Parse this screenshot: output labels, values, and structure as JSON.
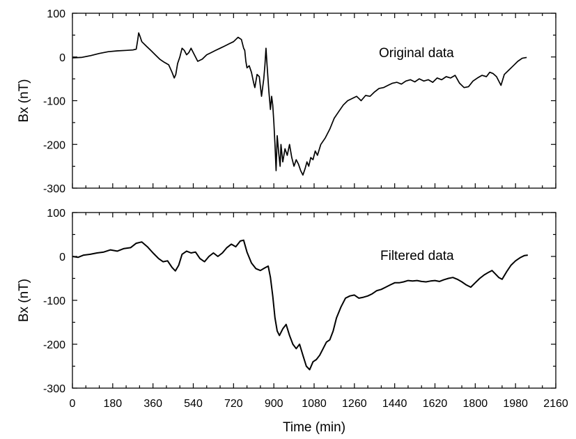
{
  "figure": {
    "xlabel": "Time (min)",
    "line_color": "#000000"
  },
  "chart_data": [
    {
      "type": "line",
      "title": "",
      "ylabel": "Bx (nT)",
      "annotation": "Original data",
      "xlim": [
        0,
        2160
      ],
      "ylim": [
        -300,
        100
      ],
      "x_ticks": [
        0,
        180,
        360,
        540,
        720,
        900,
        1080,
        1260,
        1440,
        1620,
        1800,
        1980,
        2160
      ],
      "y_ticks": [
        100,
        0,
        -100,
        -200,
        -300
      ],
      "grid": false,
      "series": [
        {
          "x": [
            0,
            40,
            80,
            120,
            160,
            200,
            240,
            270,
            285,
            292,
            296,
            300,
            310,
            330,
            350,
            370,
            390,
            410,
            430,
            445,
            455,
            462,
            470,
            480,
            490,
            500,
            510,
            520,
            530,
            545,
            560,
            580,
            600,
            620,
            640,
            660,
            680,
            700,
            720,
            740,
            755,
            760,
            765,
            770,
            775,
            780,
            790,
            800,
            810,
            815,
            825,
            835,
            845,
            855,
            860,
            865,
            870,
            878,
            885,
            890,
            895,
            900,
            905,
            910,
            915,
            922,
            928,
            932,
            940,
            950,
            960,
            970,
            980,
            990,
            1000,
            1010,
            1020,
            1030,
            1040,
            1048,
            1056,
            1065,
            1075,
            1085,
            1095,
            1110,
            1130,
            1150,
            1170,
            1190,
            1210,
            1230,
            1250,
            1270,
            1290,
            1310,
            1330,
            1350,
            1370,
            1390,
            1410,
            1430,
            1450,
            1470,
            1490,
            1510,
            1530,
            1550,
            1570,
            1590,
            1610,
            1630,
            1650,
            1670,
            1690,
            1710,
            1730,
            1750,
            1770,
            1790,
            1810,
            1830,
            1850,
            1865,
            1880,
            1895,
            1905,
            1915,
            1930,
            1950,
            1970,
            1990,
            2010,
            2030
          ],
          "y": [
            -2,
            -1,
            3,
            8,
            12,
            14,
            15,
            16,
            18,
            40,
            55,
            50,
            35,
            25,
            15,
            5,
            -5,
            -12,
            -18,
            -35,
            -48,
            -40,
            -15,
            0,
            20,
            15,
            5,
            10,
            20,
            5,
            -10,
            -5,
            5,
            10,
            15,
            20,
            25,
            30,
            35,
            45,
            40,
            30,
            20,
            15,
            -10,
            -25,
            -20,
            -35,
            -60,
            -70,
            -40,
            -45,
            -90,
            -50,
            -20,
            20,
            -20,
            -80,
            -120,
            -90,
            -110,
            -150,
            -200,
            -260,
            -180,
            -220,
            -250,
            -200,
            -240,
            -210,
            -225,
            -200,
            -230,
            -250,
            -235,
            -245,
            -260,
            -270,
            -255,
            -240,
            -250,
            -230,
            -235,
            -215,
            -225,
            -200,
            -185,
            -165,
            -140,
            -125,
            -110,
            -100,
            -95,
            -90,
            -100,
            -88,
            -90,
            -80,
            -72,
            -70,
            -65,
            -60,
            -58,
            -62,
            -55,
            -52,
            -57,
            -50,
            -55,
            -52,
            -58,
            -48,
            -52,
            -45,
            -48,
            -42,
            -60,
            -70,
            -68,
            -55,
            -48,
            -42,
            -45,
            -35,
            -38,
            -45,
            -55,
            -65,
            -40,
            -30,
            -20,
            -10,
            -3,
            -1
          ]
        }
      ]
    },
    {
      "type": "line",
      "title": "",
      "ylabel": "Bx (nT)",
      "xlabel": "Time (min)",
      "annotation": "Filtered data",
      "xlim": [
        0,
        2160
      ],
      "ylim": [
        -300,
        100
      ],
      "x_ticks": [
        0,
        180,
        360,
        540,
        720,
        900,
        1080,
        1260,
        1440,
        1620,
        1800,
        1980,
        2160
      ],
      "x_tick_labels": [
        "0",
        "180",
        "360",
        "540",
        "720",
        "900",
        "1080",
        "1260",
        "1440",
        "1620",
        "1800",
        "1980",
        "2160"
      ],
      "y_ticks": [
        100,
        0,
        -100,
        -200,
        -300
      ],
      "grid": false,
      "series": [
        {
          "x": [
            0,
            25,
            50,
            80,
            110,
            140,
            170,
            200,
            230,
            260,
            285,
            310,
            335,
            360,
            385,
            405,
            425,
            445,
            460,
            475,
            490,
            510,
            530,
            550,
            570,
            590,
            610,
            630,
            650,
            670,
            690,
            710,
            730,
            750,
            765,
            780,
            800,
            820,
            840,
            860,
            875,
            885,
            895,
            905,
            915,
            925,
            940,
            955,
            970,
            985,
            1000,
            1015,
            1030,
            1045,
            1060,
            1075,
            1090,
            1105,
            1120,
            1135,
            1150,
            1165,
            1180,
            1200,
            1220,
            1240,
            1260,
            1280,
            1300,
            1320,
            1340,
            1360,
            1380,
            1400,
            1420,
            1440,
            1460,
            1480,
            1500,
            1520,
            1540,
            1560,
            1580,
            1600,
            1620,
            1640,
            1660,
            1680,
            1700,
            1720,
            1740,
            1760,
            1780,
            1800,
            1820,
            1840,
            1860,
            1875,
            1890,
            1905,
            1920,
            1940,
            1960,
            1980,
            2000,
            2020,
            2035
          ],
          "y": [
            0,
            -2,
            3,
            5,
            8,
            10,
            15,
            12,
            18,
            20,
            30,
            33,
            22,
            8,
            -5,
            -12,
            -10,
            -25,
            -33,
            -20,
            5,
            12,
            8,
            10,
            -5,
            -12,
            0,
            8,
            0,
            8,
            20,
            28,
            22,
            35,
            37,
            10,
            -15,
            -28,
            -32,
            -26,
            -22,
            -48,
            -90,
            -140,
            -170,
            -180,
            -165,
            -155,
            -180,
            -200,
            -210,
            -200,
            -225,
            -250,
            -258,
            -240,
            -235,
            -225,
            -210,
            -195,
            -190,
            -170,
            -140,
            -115,
            -95,
            -90,
            -88,
            -95,
            -93,
            -90,
            -85,
            -78,
            -75,
            -70,
            -65,
            -60,
            -60,
            -58,
            -55,
            -56,
            -55,
            -57,
            -58,
            -56,
            -55,
            -57,
            -53,
            -50,
            -48,
            -52,
            -58,
            -65,
            -70,
            -60,
            -50,
            -42,
            -36,
            -32,
            -40,
            -48,
            -52,
            -35,
            -20,
            -10,
            -3,
            2,
            3
          ]
        }
      ]
    }
  ]
}
